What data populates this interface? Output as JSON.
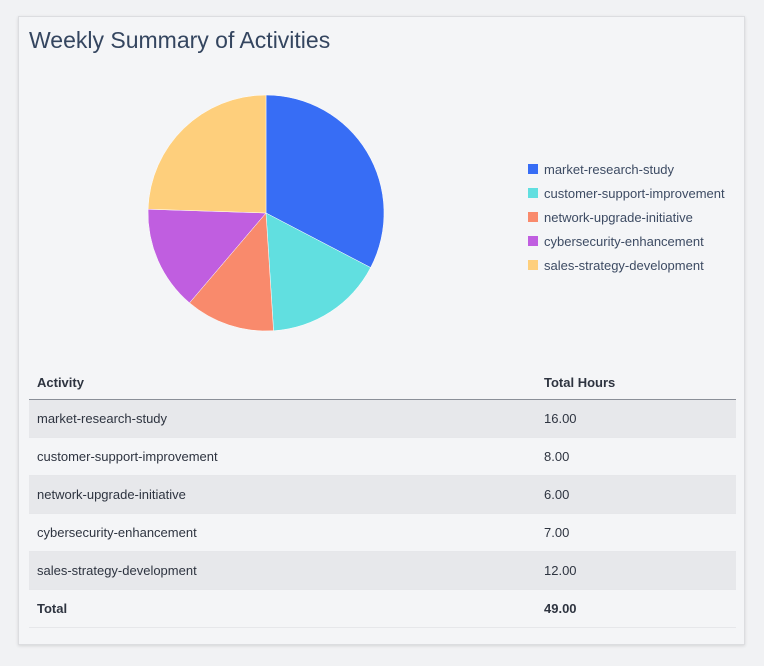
{
  "chart_data": {
    "type": "pie",
    "title": "Weekly Summary of Activities",
    "categories": [
      "market-research-study",
      "customer-support-improvement",
      "network-upgrade-initiative",
      "cybersecurity-enhancement",
      "sales-strategy-development"
    ],
    "values": [
      16,
      8,
      6,
      7,
      12
    ],
    "colors": [
      "#376df5",
      "#61dfe0",
      "#f98a6c",
      "#c05ee0",
      "#fecf7c"
    ],
    "legend_position": "right",
    "start_angle": "top",
    "direction": "clockwise"
  },
  "table": {
    "headers": [
      "Activity",
      "Total Hours"
    ],
    "rows": [
      [
        "market-research-study",
        "16.00"
      ],
      [
        "customer-support-improvement",
        "8.00"
      ],
      [
        "network-upgrade-initiative",
        "6.00"
      ],
      [
        "cybersecurity-enhancement",
        "7.00"
      ],
      [
        "sales-strategy-development",
        "12.00"
      ]
    ],
    "total": [
      "Total",
      "49.00"
    ]
  }
}
